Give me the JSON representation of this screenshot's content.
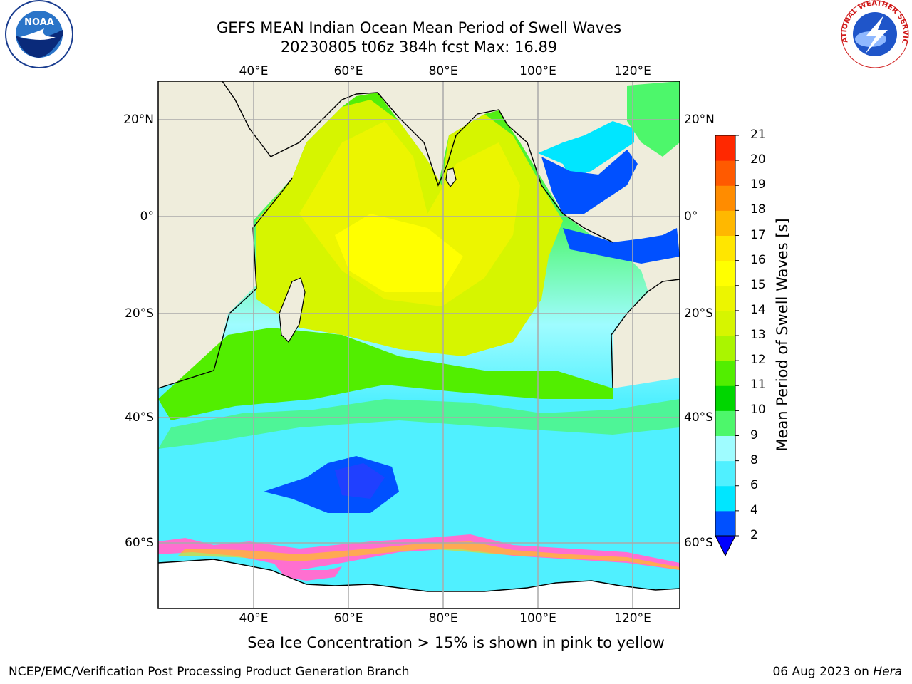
{
  "header": {
    "title_line1": "GEFS MEAN Indian Ocean Mean Period of Swell Waves",
    "title_line2": "20230805 t06z 384h fcst   Max: 16.89"
  },
  "logos": {
    "left": "NOAA",
    "right": "NATIONAL WEATHER SERVICE"
  },
  "map": {
    "lon_labels": [
      "40°E",
      "60°E",
      "80°E",
      "100°E",
      "120°E"
    ],
    "lat_labels": [
      "20°N",
      "0°",
      "20°S",
      "40°S",
      "60°S"
    ]
  },
  "colorbar": {
    "label": "Mean Period of Swell Waves [s]",
    "ticks": [
      "2",
      "4",
      "6",
      "8",
      "9",
      "10",
      "11",
      "12",
      "13",
      "14",
      "15",
      "16",
      "17",
      "18",
      "19",
      "20",
      "21"
    ],
    "colors": [
      "#0050ff",
      "#00e6ff",
      "#50f0ff",
      "#9ffcff",
      "#4df76b",
      "#00d600",
      "#52ee00",
      "#aaf500",
      "#d6f500",
      "#ecf500",
      "#ffff00",
      "#ffe600",
      "#ffb800",
      "#ff8c00",
      "#ff5a00",
      "#ff2800",
      "#ff0000"
    ],
    "under_color": "#0000ff"
  },
  "ice_note": "Sea Ice Concentration > 15% is shown in pink to yellow",
  "footer": {
    "left": "NCEP/EMC/Verification Post Processing Product Generation Branch",
    "right_date": "06 Aug 2023 on ",
    "right_host": "Hera"
  }
}
